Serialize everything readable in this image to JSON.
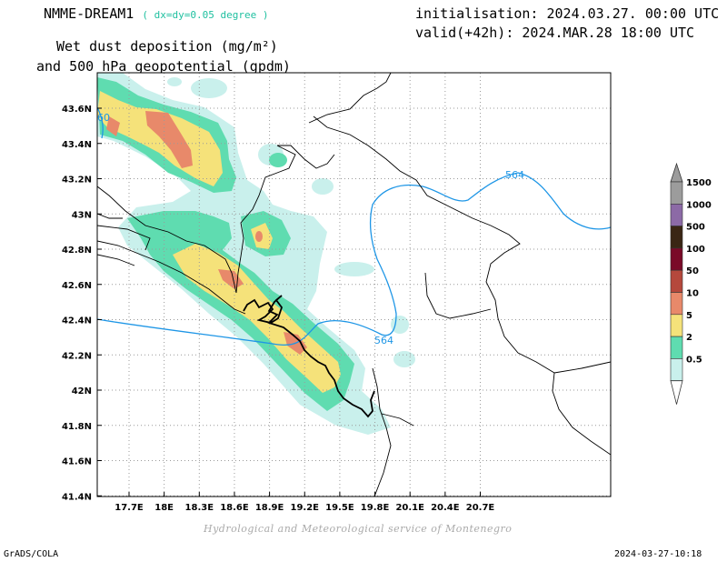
{
  "header": {
    "model_name": "NMME-DREAM1",
    "resolution": "( dx=dy=0.05 degree )",
    "title_line1": "Wet dust deposition (mg/m²)",
    "title_line2": "and 500 hPa geopotential (gpdm)",
    "init": "initialisation: 2024.03.27. 00:00 UTC",
    "valid": "valid(+42h): 2024.MAR.28 18:00 UTC"
  },
  "map": {
    "lon_ticks": [
      "17.7E",
      "18E",
      "18.3E",
      "18.6E",
      "18.9E",
      "19.2E",
      "19.5E",
      "19.8E",
      "20.1E",
      "20.4E",
      "20.7E"
    ],
    "lat_ticks": [
      "43.6N",
      "43.4N",
      "43.2N",
      "43N",
      "42.8N",
      "42.6N",
      "42.4N",
      "42.2N",
      "42N",
      "41.8N",
      "41.6N",
      "41.4N"
    ],
    "contour_labels": [
      "564",
      "564",
      "60"
    ],
    "colors": {
      "frame": "#000000",
      "grid": "#9a9a9a",
      "geopotential": "#1e96e6",
      "border": "#000000"
    }
  },
  "legend": {
    "items": [
      {
        "label": "1500",
        "color": "#9c9c9c"
      },
      {
        "label": "1000",
        "color": "#8c6aa6"
      },
      {
        "label": "500",
        "color": "#3a2614"
      },
      {
        "label": "100",
        "color": "#7a0a28"
      },
      {
        "label": "50",
        "color": "#b5483c"
      },
      {
        "label": "10",
        "color": "#e8896a"
      },
      {
        "label": "5",
        "color": "#f5e27a"
      },
      {
        "label": "2",
        "color": "#5fdcb0"
      },
      {
        "label": "0.5",
        "color": "#c9f0ec"
      }
    ]
  },
  "footer": {
    "credit": "Hydrological and Meteorological service of Montenegro",
    "software": "GrADS/COLA",
    "timestamp": "2024-03-27-10:18"
  }
}
